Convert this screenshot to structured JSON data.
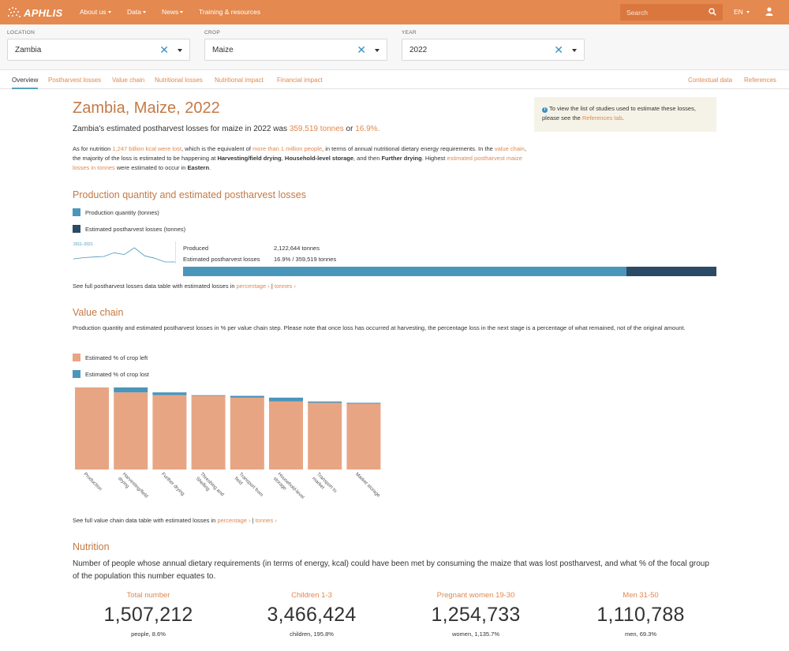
{
  "navbar": {
    "logo_text": "APHLIS",
    "items": [
      {
        "label": "About us",
        "dropdown": true
      },
      {
        "label": "Data",
        "dropdown": true
      },
      {
        "label": "News",
        "dropdown": true
      },
      {
        "label": "Training & resources",
        "dropdown": false
      }
    ],
    "search_placeholder": "Search",
    "language": "EN",
    "colors": {
      "bar": "#e4894f",
      "search_bg": "#d9773f"
    }
  },
  "filters": [
    {
      "label": "LOCATION",
      "value": "Zambia"
    },
    {
      "label": "CROP",
      "value": "Maize"
    },
    {
      "label": "YEAR",
      "value": "2022"
    }
  ],
  "tabs": {
    "left": [
      "Overview",
      "Postharvest losses",
      "Value chain",
      "Nutritional losses",
      "Nutritional impact",
      "Financial impact"
    ],
    "active": "Overview",
    "right": [
      "Contextual data",
      "References"
    ]
  },
  "overview": {
    "title": "Zambia, Maize, 2022",
    "lead_prefix": "Zambia's estimated postharvest losses for maize in 2022 was ",
    "lead_tonnes": "359,519 tonnes",
    "lead_or": " or ",
    "lead_pct": "16.9%.",
    "para": {
      "t1": "As for nutrition ",
      "l1": "1,247 billion kcal were lost",
      "t2": ", which is the equivalent of ",
      "l2": "more than 1 million people",
      "t3": ", in terms of annual nutritional dietary energy requirements. In the ",
      "l3": "value chain",
      "t4": ", the majority of the loss is estimated to be happening at ",
      "b1": "Harvesting/field drying",
      "t5": ", ",
      "b2": "Household-level storage",
      "t6": ", and then ",
      "b3": "Further drying",
      "t7": ". Highest ",
      "l4": "estimated postharvest maize losses in tonnes",
      "t8": " were estimated to occur in ",
      "b4": "Eastern",
      "t9": "."
    },
    "info": {
      "text": "To view the list of studies used to estimate these losses, please see the ",
      "link": "References tab",
      "end": "."
    }
  },
  "production": {
    "section_title": "Production quantity and estimated postharvest losses",
    "legend": [
      {
        "label": "Production quantity (tonnes)",
        "color": "#4a96bb"
      },
      {
        "label": "Estimated postharvest losses (tonnes)",
        "color": "#2a4a66"
      }
    ],
    "spark_label": "2011–2021",
    "spark_values": [
      42,
      44,
      45,
      46,
      52,
      49,
      60,
      47,
      43,
      37,
      37
    ],
    "produced_label": "Produced",
    "produced_value": "2,122,644 tonnes",
    "loss_label": "Estimated postharvest losses",
    "loss_value": "16.9% / 359,519 tonnes",
    "loss_fraction": 0.169,
    "see_full_text": "See full postharvest losses data table with estimated losses in ",
    "link_pct": "percentage ›",
    "sep": " | ",
    "link_tonnes": "tonnes ›"
  },
  "value_chain": {
    "section_title": "Value chain",
    "description": "Production quantity and estimated postharvest losses in % per value chain step. Please note that once loss has occurred at harvesting, the percentage loss in the next stage is a percentage of what remained, not of the original amount.",
    "legend": [
      {
        "label": "Estimated % of crop left",
        "color": "#e8a584"
      },
      {
        "label": "Estimated % of crop lost",
        "color": "#4a96bb"
      }
    ],
    "see_full_text": "See full value chain data table with estimated losses in ",
    "link_pct": "percentage ›",
    "sep": " | ",
    "link_tonnes": "tonnes ›"
  },
  "chart_data": {
    "type": "bar",
    "stacked": true,
    "categories": [
      "Production",
      "Harvesting/field drying",
      "Further drying",
      "Threshing and Shelling",
      "Transport from field",
      "Household-level storage",
      "Transport to market",
      "Market storage"
    ],
    "series": [
      {
        "name": "Estimated % of crop left",
        "values": [
          100,
          94.0,
          90.6,
          89.8,
          87.6,
          82.9,
          81.3,
          80.2
        ],
        "color": "#e8a584"
      },
      {
        "name": "Estimated % of crop lost",
        "values": [
          0,
          6.0,
          3.4,
          0.8,
          2.2,
          4.7,
          1.6,
          1.1
        ],
        "color": "#4a96bb"
      }
    ],
    "ylim": [
      0,
      100
    ],
    "grid": false,
    "legend_position": "top-left"
  },
  "nutrition": {
    "section_title": "Nutrition",
    "description": "Number of people whose annual dietary requirements (in terms of energy, kcal) could have been met by consuming the maize that was lost postharvest, and what % of the focal group of the population this number equates to.",
    "groups": [
      {
        "label": "Total number",
        "value": "1,507,212",
        "sub": "people, 8.6%"
      },
      {
        "label": "Children 1-3",
        "value": "3,466,424",
        "sub": "children, 195.8%"
      },
      {
        "label": "Pregnant women 19-30",
        "value": "1,254,733",
        "sub": "women, 1,135.7%"
      },
      {
        "label": "Men 31-50",
        "value": "1,110,788",
        "sub": "men, 69.3%"
      }
    ]
  }
}
